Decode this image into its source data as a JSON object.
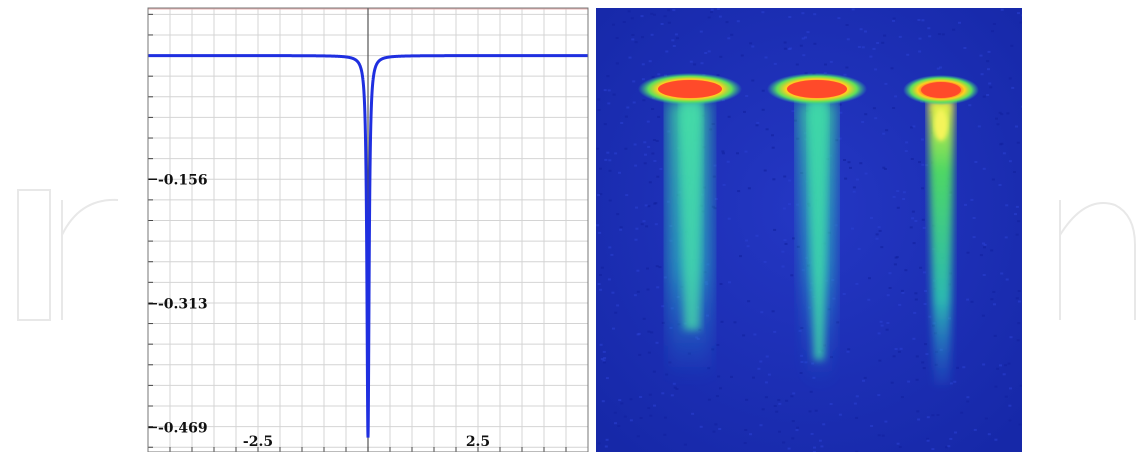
{
  "colors": {
    "series": "#1f2fe0",
    "panel_bg": "#1a2fb8"
  },
  "chart_data": {
    "type": "line",
    "title": "",
    "xlabel": "",
    "ylabel": "",
    "xlim": [
      -5,
      5
    ],
    "ylim": [
      -0.5,
      0.06
    ],
    "x_ticks": [
      {
        "value": -2.5,
        "label": "-2.5"
      },
      {
        "value": 2.5,
        "label": "2.5"
      }
    ],
    "y_ticks": [
      {
        "value": -0.156,
        "label": "-0.156"
      },
      {
        "value": -0.313,
        "label": "-0.313"
      },
      {
        "value": -0.469,
        "label": "-0.469"
      }
    ],
    "grid": true,
    "series": [
      {
        "shape": "lorentzian-dip",
        "baseline": 0,
        "center": 0,
        "min": -0.48,
        "half_width": 0.03
      }
    ]
  },
  "image_panel": {
    "description_icon": "false-color-intensity-image",
    "spots": [
      {
        "id": "spot-1"
      },
      {
        "id": "spot-2"
      },
      {
        "id": "spot-3"
      }
    ]
  }
}
